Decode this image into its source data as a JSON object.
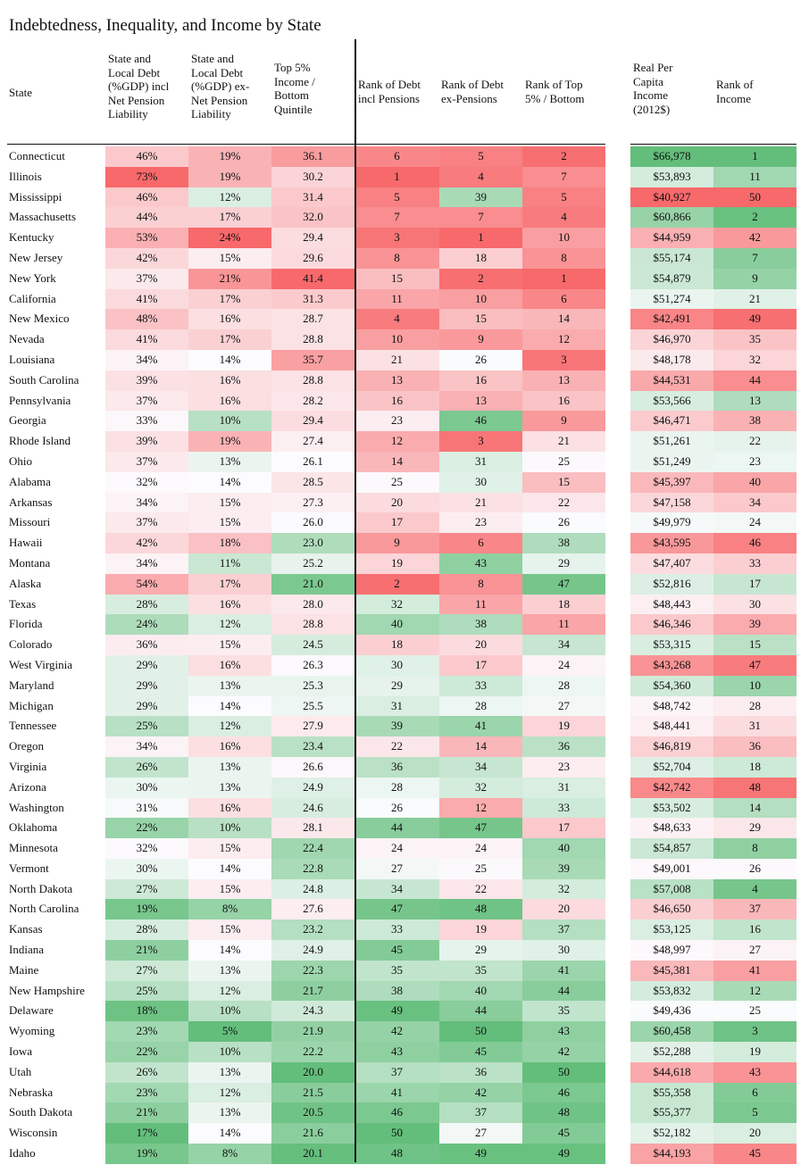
{
  "title": "Indebtedness, Inequality, and Income by State",
  "headers": [
    "State",
    "State and\nLocal Debt\n(%GDP) incl\nNet Pension\nLiability",
    "State and\nLocal Debt\n(%GDP) ex-\nNet Pension\nLiability",
    "Top 5%\nIncome /\nBottom\nQuintile",
    "Rank of Debt\nincl Pensions",
    "Rank of Debt\nex-Pensions",
    "Rank of Top\n5% /  Bottom",
    "Real Per\nCapita\nIncome\n(2012$)",
    "Rank of\nIncome"
  ],
  "colors": {
    "red": "#f8696b",
    "white": "#fcfcff",
    "green": "#63be7b"
  },
  "chart_data": {
    "type": "table",
    "title": "Indebtedness, Inequality, and Income by State",
    "columns": [
      "State",
      "State and Local Debt (%GDP) incl Net Pension Liability",
      "State and Local Debt (%GDP) ex-Net Pension Liability",
      "Top 5% Income / Bottom Quintile",
      "Rank of Debt incl Pensions",
      "Rank of Debt ex-Pensions",
      "Rank of Top 5% /  Bottom",
      "Real Per Capita Income (2012$)",
      "Rank of Income"
    ],
    "rows": [
      [
        "Connecticut",
        "46%",
        "19%",
        "36.1",
        "6",
        "5",
        "2",
        "$66,978",
        "1"
      ],
      [
        "Illinois",
        "73%",
        "19%",
        "30.2",
        "1",
        "4",
        "7",
        "$53,893",
        "11"
      ],
      [
        "Mississippi",
        "46%",
        "12%",
        "31.4",
        "5",
        "39",
        "5",
        "$40,927",
        "50"
      ],
      [
        "Massachusetts",
        "44%",
        "17%",
        "32.0",
        "7",
        "7",
        "4",
        "$60,866",
        "2"
      ],
      [
        "Kentucky",
        "53%",
        "24%",
        "29.4",
        "3",
        "1",
        "10",
        "$44,959",
        "42"
      ],
      [
        "New Jersey",
        "42%",
        "15%",
        "29.6",
        "8",
        "18",
        "8",
        "$55,174",
        "7"
      ],
      [
        "New York",
        "37%",
        "21%",
        "41.4",
        "15",
        "2",
        "1",
        "$54,879",
        "9"
      ],
      [
        "California",
        "41%",
        "17%",
        "31.3",
        "11",
        "10",
        "6",
        "$51,274",
        "21"
      ],
      [
        "New Mexico",
        "48%",
        "16%",
        "28.7",
        "4",
        "15",
        "14",
        "$42,491",
        "49"
      ],
      [
        "Nevada",
        "41%",
        "17%",
        "28.8",
        "10",
        "9",
        "12",
        "$46,970",
        "35"
      ],
      [
        "Louisiana",
        "34%",
        "14%",
        "35.7",
        "21",
        "26",
        "3",
        "$48,178",
        "32"
      ],
      [
        "South Carolina",
        "39%",
        "16%",
        "28.8",
        "13",
        "16",
        "13",
        "$44,531",
        "44"
      ],
      [
        "Pennsylvania",
        "37%",
        "16%",
        "28.2",
        "16",
        "13",
        "16",
        "$53,566",
        "13"
      ],
      [
        "Georgia",
        "33%",
        "10%",
        "29.4",
        "23",
        "46",
        "9",
        "$46,471",
        "38"
      ],
      [
        "Rhode Island",
        "39%",
        "19%",
        "27.4",
        "12",
        "3",
        "21",
        "$51,261",
        "22"
      ],
      [
        "Ohio",
        "37%",
        "13%",
        "26.1",
        "14",
        "31",
        "25",
        "$51,249",
        "23"
      ],
      [
        "Alabama",
        "32%",
        "14%",
        "28.5",
        "25",
        "30",
        "15",
        "$45,397",
        "40"
      ],
      [
        "Arkansas",
        "34%",
        "15%",
        "27.3",
        "20",
        "21",
        "22",
        "$47,158",
        "34"
      ],
      [
        "Missouri",
        "37%",
        "15%",
        "26.0",
        "17",
        "23",
        "26",
        "$49,979",
        "24"
      ],
      [
        "Hawaii",
        "42%",
        "18%",
        "23.0",
        "9",
        "6",
        "38",
        "$43,595",
        "46"
      ],
      [
        "Montana",
        "34%",
        "11%",
        "25.2",
        "19",
        "43",
        "29",
        "$47,407",
        "33"
      ],
      [
        "Alaska",
        "54%",
        "17%",
        "21.0",
        "2",
        "8",
        "47",
        "$52,816",
        "17"
      ],
      [
        "Texas",
        "28%",
        "16%",
        "28.0",
        "32",
        "11",
        "18",
        "$48,443",
        "30"
      ],
      [
        "Florida",
        "24%",
        "12%",
        "28.8",
        "40",
        "38",
        "11",
        "$46,346",
        "39"
      ],
      [
        "Colorado",
        "36%",
        "15%",
        "24.5",
        "18",
        "20",
        "34",
        "$53,315",
        "15"
      ],
      [
        "West Virginia",
        "29%",
        "16%",
        "26.3",
        "30",
        "17",
        "24",
        "$43,268",
        "47"
      ],
      [
        "Maryland",
        "29%",
        "13%",
        "25.3",
        "29",
        "33",
        "28",
        "$54,360",
        "10"
      ],
      [
        "Michigan",
        "29%",
        "14%",
        "25.5",
        "31",
        "28",
        "27",
        "$48,742",
        "28"
      ],
      [
        "Tennessee",
        "25%",
        "12%",
        "27.9",
        "39",
        "41",
        "19",
        "$48,441",
        "31"
      ],
      [
        "Oregon",
        "34%",
        "16%",
        "23.4",
        "22",
        "14",
        "36",
        "$46,819",
        "36"
      ],
      [
        "Virginia",
        "26%",
        "13%",
        "26.6",
        "36",
        "34",
        "23",
        "$52,704",
        "18"
      ],
      [
        "Arizona",
        "30%",
        "13%",
        "24.9",
        "28",
        "32",
        "31",
        "$42,742",
        "48"
      ],
      [
        "Washington",
        "31%",
        "16%",
        "24.6",
        "26",
        "12",
        "33",
        "$53,502",
        "14"
      ],
      [
        "Oklahoma",
        "22%",
        "10%",
        "28.1",
        "44",
        "47",
        "17",
        "$48,633",
        "29"
      ],
      [
        "Minnesota",
        "32%",
        "15%",
        "22.4",
        "24",
        "24",
        "40",
        "$54,857",
        "8"
      ],
      [
        "Vermont",
        "30%",
        "14%",
        "22.8",
        "27",
        "25",
        "39",
        "$49,001",
        "26"
      ],
      [
        "North Dakota",
        "27%",
        "15%",
        "24.8",
        "34",
        "22",
        "32",
        "$57,008",
        "4"
      ],
      [
        "North Carolina",
        "19%",
        "8%",
        "27.6",
        "47",
        "48",
        "20",
        "$46,650",
        "37"
      ],
      [
        "Kansas",
        "28%",
        "15%",
        "23.2",
        "33",
        "19",
        "37",
        "$53,125",
        "16"
      ],
      [
        "Indiana",
        "21%",
        "14%",
        "24.9",
        "45",
        "29",
        "30",
        "$48,997",
        "27"
      ],
      [
        "Maine",
        "27%",
        "13%",
        "22.3",
        "35",
        "35",
        "41",
        "$45,381",
        "41"
      ],
      [
        "New Hampshire",
        "25%",
        "12%",
        "21.7",
        "38",
        "40",
        "44",
        "$53,832",
        "12"
      ],
      [
        "Delaware",
        "18%",
        "10%",
        "24.3",
        "49",
        "44",
        "35",
        "$49,436",
        "25"
      ],
      [
        "Wyoming",
        "23%",
        "5%",
        "21.9",
        "42",
        "50",
        "43",
        "$60,458",
        "3"
      ],
      [
        "Iowa",
        "22%",
        "10%",
        "22.2",
        "43",
        "45",
        "42",
        "$52,288",
        "19"
      ],
      [
        "Utah",
        "26%",
        "13%",
        "20.0",
        "37",
        "36",
        "50",
        "$44,618",
        "43"
      ],
      [
        "Nebraska",
        "23%",
        "12%",
        "21.5",
        "41",
        "42",
        "46",
        "$55,358",
        "6"
      ],
      [
        "South Dakota",
        "21%",
        "13%",
        "20.5",
        "46",
        "37",
        "48",
        "$55,377",
        "5"
      ],
      [
        "Wisconsin",
        "17%",
        "14%",
        "21.6",
        "50",
        "27",
        "45",
        "$52,182",
        "20"
      ],
      [
        "Idaho",
        "19%",
        "8%",
        "20.1",
        "48",
        "49",
        "49",
        "$44,193",
        "45"
      ]
    ]
  }
}
